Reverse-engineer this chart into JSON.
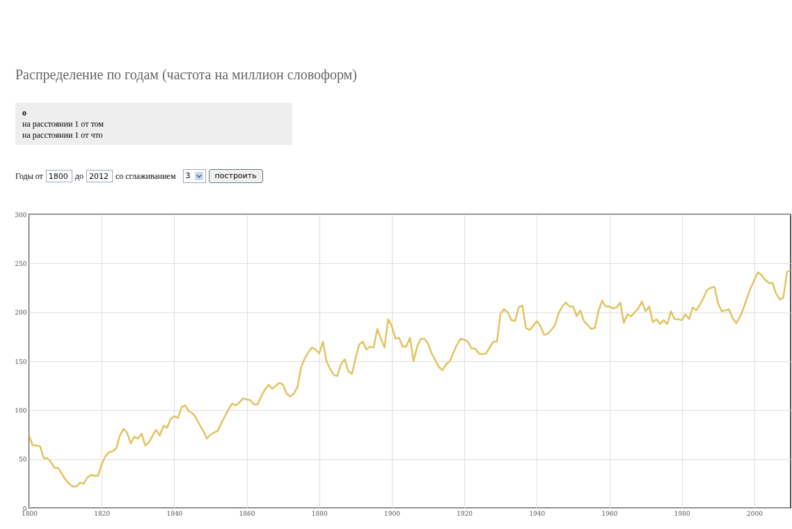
{
  "chart_data": {
    "type": "line",
    "title": "Распределение по годам (частота на миллион словоформ)",
    "annotations": [
      "о",
      "на расстоянии 1 от том",
      "на расстоянии 1 от что",
      "Годы от",
      "1800",
      "до",
      "2012",
      "со сглаживанием",
      "3",
      "построить"
    ],
    "x": [
      1800,
      1801,
      1802,
      1803,
      1804,
      1805,
      1806,
      1807,
      1808,
      1809,
      1810,
      1811,
      1812,
      1813,
      1814,
      1815,
      1816,
      1817,
      1818,
      1819,
      1820,
      1821,
      1822,
      1823,
      1824,
      1825,
      1826,
      1827,
      1828,
      1829,
      1830,
      1831,
      1832,
      1833,
      1834,
      1835,
      1836,
      1837,
      1838,
      1839,
      1840,
      1841,
      1842,
      1843,
      1844,
      1845,
      1846,
      1847,
      1848,
      1849,
      1850,
      1851,
      1852,
      1853,
      1854,
      1855,
      1856,
      1857,
      1858,
      1859,
      1860,
      1861,
      1862,
      1863,
      1864,
      1865,
      1866,
      1867,
      1868,
      1869,
      1870,
      1871,
      1872,
      1873,
      1874,
      1875,
      1876,
      1877,
      1878,
      1879,
      1880,
      1881,
      1882,
      1883,
      1884,
      1885,
      1886,
      1887,
      1888,
      1889,
      1890,
      1891,
      1892,
      1893,
      1894,
      1895,
      1896,
      1897,
      1898,
      1899,
      1900,
      1901,
      1902,
      1903,
      1904,
      1905,
      1906,
      1907,
      1908,
      1909,
      1910,
      1911,
      1912,
      1913,
      1914,
      1915,
      1916,
      1917,
      1918,
      1919,
      1920,
      1921,
      1922,
      1923,
      1924,
      1925,
      1926,
      1927,
      1928,
      1929,
      1930,
      1931,
      1932,
      1933,
      1934,
      1935,
      1936,
      1937,
      1938,
      1939,
      1940,
      1941,
      1942,
      1943,
      1944,
      1945,
      1946,
      1947,
      1948,
      1949,
      1950,
      1951,
      1952,
      1953,
      1954,
      1955,
      1956,
      1957,
      1958,
      1959,
      1960,
      1961,
      1962,
      1963,
      1964,
      1965,
      1966,
      1967,
      1968,
      1969,
      1970,
      1971,
      1972,
      1973,
      1974,
      1975,
      1976,
      1977,
      1978,
      1979,
      1980,
      1981,
      1982,
      1983,
      1984,
      1985,
      1986,
      1987,
      1988,
      1989,
      1990,
      1991,
      1992,
      1993,
      1994,
      1995,
      1996,
      1997,
      1998,
      1999,
      2000,
      2001,
      2002,
      2003,
      2004,
      2005,
      2006,
      2007,
      2008,
      2009,
      2010
    ],
    "series": [
      {
        "color": "#e2c35f",
        "values": [
          73,
          64,
          64,
          63,
          51,
          51,
          47,
          41,
          41,
          35,
          29,
          25,
          22,
          22,
          26,
          25,
          31,
          34,
          33,
          33,
          45,
          53,
          57,
          58,
          61,
          74,
          81,
          77,
          66,
          73,
          71,
          76,
          64,
          67,
          74,
          80,
          74,
          84,
          82,
          91,
          94,
          92,
          103,
          105,
          99,
          97,
          92,
          85,
          79,
          71,
          75,
          77,
          79,
          87,
          94,
          101,
          107,
          105,
          108,
          112,
          111,
          110,
          106,
          106,
          114,
          121,
          126,
          122,
          125,
          128,
          126,
          117,
          114,
          117,
          124,
          144,
          153,
          159,
          164,
          162,
          158,
          170,
          150,
          142,
          136,
          135,
          147,
          152,
          140,
          137,
          153,
          167,
          170,
          162,
          165,
          164,
          183,
          173,
          164,
          193,
          186,
          173,
          174,
          165,
          165,
          174,
          150,
          165,
          173,
          173,
          168,
          158,
          151,
          144,
          141,
          147,
          150,
          159,
          167,
          173,
          172,
          170,
          163,
          163,
          158,
          157,
          158,
          164,
          170,
          170,
          199,
          203,
          200,
          192,
          191,
          205,
          207,
          184,
          182,
          186,
          191,
          186,
          177,
          178,
          182,
          187,
          199,
          206,
          210,
          206,
          206,
          196,
          202,
          191,
          187,
          183,
          184,
          201,
          212,
          206,
          206,
          204,
          205,
          210,
          189,
          198,
          196,
          200,
          204,
          211,
          201,
          206,
          190,
          193,
          188,
          192,
          188,
          201,
          193,
          193,
          192,
          198,
          193,
          205,
          202,
          208,
          215,
          223,
          225,
          226,
          209,
          201,
          202,
          203,
          194,
          189,
          195,
          204,
          215,
          225,
          233,
          241,
          238,
          233,
          230,
          230,
          219,
          213,
          215,
          241,
          243
        ]
      }
    ],
    "xlim": [
      1800,
      2010
    ],
    "ylim": [
      0,
      300
    ],
    "xticks": [
      1800,
      1820,
      1840,
      1860,
      1880,
      1900,
      1920,
      1940,
      1960,
      1980,
      2000
    ],
    "yticks": [
      0,
      50,
      100,
      150,
      200,
      250,
      300
    ],
    "grid": true,
    "marker": "none",
    "line_style": "solid"
  }
}
